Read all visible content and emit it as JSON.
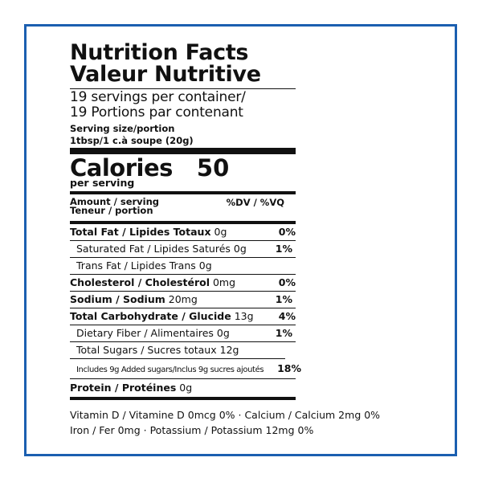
{
  "title": {
    "line1": "Nutrition Facts",
    "line2": "Valeur Nutritive"
  },
  "servings": {
    "line1": "19 servings per container/",
    "line2": "19 Portions par contenant"
  },
  "serving_size": {
    "label": "Serving size/portion",
    "value": "1tbsp/1 c.à soupe (20g)"
  },
  "calories": {
    "label": "Calories",
    "value": "50",
    "per": "per serving"
  },
  "amount": {
    "line1": "Amount / serving",
    "line2": "Teneur / portion",
    "dv_header": "%DV / %VQ"
  },
  "nutrients": [
    {
      "label": "Total Fat / Lipides Totaux",
      "amount": "0g",
      "dv": "0%"
    },
    {
      "label": "Saturated Fat / Lipides Saturés",
      "amount": "0g",
      "dv": "1%"
    },
    {
      "label": "Trans Fat / Lipides Trans",
      "amount": "0g",
      "dv": ""
    },
    {
      "label": "Cholesterol / Cholestérol",
      "amount": "0mg",
      "dv": "0%"
    },
    {
      "label": "Sodium / Sodium",
      "amount": "20mg",
      "dv": "1%"
    },
    {
      "label": "Total Carbohydrate / Glucide",
      "amount": "13g",
      "dv": "4%"
    },
    {
      "label": "Dietary Fiber / Alimentaires",
      "amount": "0g",
      "dv": "1%"
    },
    {
      "label": "Total Sugars / Sucres totaux",
      "amount": "12g",
      "dv": ""
    },
    {
      "label": "Includes 9g Added sugars/Inclus 9g sucres ajoutés",
      "amount": "",
      "dv": "18%"
    },
    {
      "label": "Protein / Protéines",
      "amount": "0g",
      "dv": ""
    }
  ],
  "footer": {
    "line1": "Vitamin D / Vitamine D 0mcg 0% · Calcium / Calcium 2mg 0%",
    "line2": "Iron / Fer 0mg · Potassium / Potassium 12mg 0%"
  },
  "colors": {
    "frame": "#1b5fb0",
    "text": "#111111"
  }
}
